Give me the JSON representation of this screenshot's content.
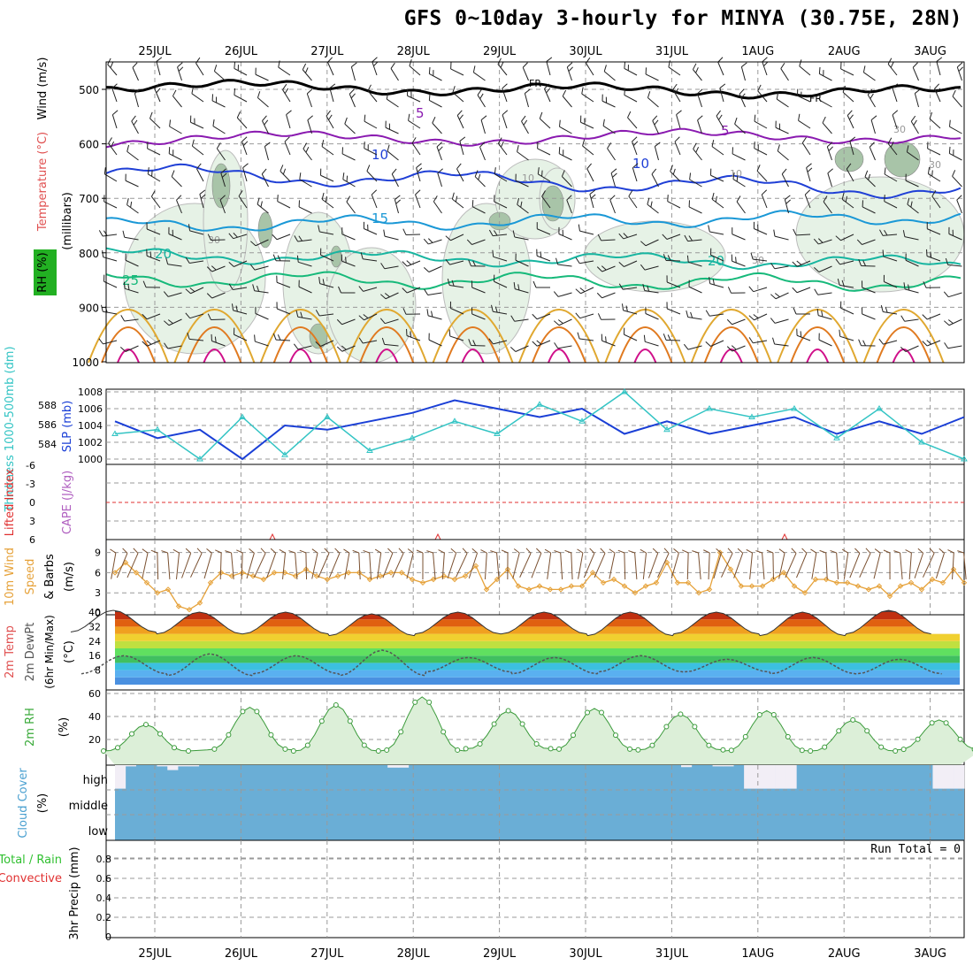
{
  "title": "GFS 0~10day 3-hourly for MINYA (30.75E, 28N)",
  "dates": [
    "25JUL",
    "26JUL",
    "27JUL",
    "28JUL",
    "29JUL",
    "30JUL",
    "31JUL",
    "1AUG",
    "2AUG",
    "3AUG"
  ],
  "colors": {
    "wind_barb": "#000000",
    "freezing": "#000000",
    "rh_fill": "#e6f2e6",
    "temp_5": "#8a1ab0",
    "temp_10": "#1f3fd6",
    "temp_15": "#1a98d6",
    "temp_20": "#17b5a0",
    "temp_25": "#16b97a",
    "temp_warm": "#e0a830",
    "temp_hot": "#e07a20",
    "slp": "#1a3fd6",
    "thickness": "#33c4c4",
    "lifted_zero": "#e03030",
    "wind10": "#e6a23a",
    "temp2m_line": "#333333",
    "rh2m": "#3a9a3a",
    "cloud": "#6aaed6",
    "grid": "#aaaaaa"
  },
  "upper_panel": {
    "axis_label_wind": "Wind (m/s)",
    "axis_label_temp": "Temperature (°C)",
    "axis_label_rh": "RH (%)",
    "axis_label_pressure": "(millibars)",
    "pressure_ticks": [
      "500",
      "600",
      "700",
      "800",
      "900",
      "1000"
    ],
    "fr_label": "FR",
    "contour_labels": [
      "5",
      "5",
      "10",
      "10",
      "15",
      "20",
      "20",
      "25",
      "30",
      "30",
      "30",
      "30",
      "10",
      "10"
    ]
  },
  "chart_data": [
    {
      "type": "line",
      "panel": "SLP and 1000-500mb thickness",
      "x": [
        "24JUL 12",
        "25JUL 00",
        "25JUL 12",
        "26JUL 00",
        "26JUL 12",
        "27JUL 00",
        "27JUL 12",
        "28JUL 00",
        "28JUL 12",
        "29JUL 00",
        "29JUL 12",
        "30JUL 00",
        "30JUL 12",
        "31JUL 00",
        "31JUL 12",
        "1AUG 00",
        "1AUG 12",
        "2AUG 00",
        "2AUG 12",
        "3AUG 00",
        "3AUG 12"
      ],
      "series": [
        {
          "name": "SLP (mb)",
          "values": [
            1004.5,
            1002.5,
            1003.5,
            1000,
            1004,
            1003.5,
            1004.5,
            1005.5,
            1007,
            1006,
            1005,
            1006,
            1003,
            1004.5,
            1003,
            1004,
            1005,
            1003,
            1004.5,
            1003,
            1005
          ]
        },
        {
          "name": "Thickness 1000-500mb (dm)",
          "values": [
            1003,
            1003.5,
            1000,
            1005,
            1000.5,
            1005,
            1001,
            1002.5,
            1004.5,
            1003,
            1006.5,
            1004.5,
            1008,
            1003.5,
            1006,
            1005,
            1006,
            1002.5,
            1006,
            1002,
            1000
          ]
        }
      ],
      "ylabel_left": "Thickness 1000-500mb (dm)",
      "ylabel_right": "SLP (mb)",
      "left_ticks": [
        "588",
        "586",
        "584"
      ],
      "right_ticks": [
        "1008",
        "1006",
        "1004",
        "1002",
        "1000"
      ]
    },
    {
      "type": "line",
      "panel": "Lifted Index and CAPE",
      "ylabel": "Lifted Index",
      "ylabel2": "CAPE (J/kg)",
      "ticks": [
        "-6",
        "-3",
        "0",
        "3",
        "6"
      ],
      "values": [
        0,
        0,
        0,
        0,
        0
      ]
    },
    {
      "type": "line",
      "panel": "10m Wind Speed and Barbs",
      "ylabel": "10m Wind Speed & Barbs",
      "unit": "(m/s)",
      "ticks": [
        "9",
        "6",
        "3",
        "0"
      ],
      "x_hours": [
        0,
        3,
        6,
        9,
        12,
        15,
        18,
        21,
        24,
        27,
        30,
        33,
        36,
        39,
        42,
        45,
        48,
        51,
        54,
        57,
        60,
        63,
        66,
        69,
        72,
        75,
        78,
        81,
        84,
        87,
        90,
        93,
        96,
        99,
        102,
        105,
        108,
        111,
        114,
        117,
        120,
        123,
        126,
        129,
        132,
        135,
        138,
        141,
        144,
        147,
        150,
        153,
        156,
        159,
        162,
        165,
        168,
        171,
        174,
        177,
        180,
        183,
        186,
        189,
        192,
        195,
        198,
        201,
        204,
        207,
        210,
        213,
        216,
        219,
        222,
        225,
        228,
        231,
        234,
        237,
        240
      ],
      "values": [
        6,
        7.5,
        6,
        4.5,
        3,
        3.5,
        1,
        0.5,
        1.5,
        4.5,
        6,
        5.5,
        6,
        5.5,
        5,
        6,
        6,
        5.5,
        6.5,
        5.5,
        5,
        5.5,
        6,
        6,
        5,
        5.5,
        6,
        6,
        5,
        4.5,
        5,
        5.5,
        5,
        5.5,
        7,
        3.5,
        5,
        6.5,
        4,
        3.5,
        4,
        3.5,
        3.5,
        4,
        4,
        6,
        4.5,
        5,
        4,
        3,
        4,
        4.5,
        7.5,
        4.5,
        4.5,
        3,
        3.5,
        9,
        6.5,
        4,
        4,
        4,
        5,
        6,
        4,
        3,
        5,
        5,
        4.5,
        4.5,
        4,
        3.5,
        4,
        2.5,
        4,
        4.5,
        3.5,
        5,
        4.5,
        6.5,
        4.5
      ]
    },
    {
      "type": "area",
      "panel": "2m Temp and DewPt",
      "ylabel": "2m Temp 2m DewPt (6hr Min/Max)",
      "unit": "(°C)",
      "ticks": [
        "40",
        "32",
        "24",
        "16",
        "8"
      ],
      "series": [
        {
          "name": "2m Temp",
          "min": [
            29,
            28,
            28,
            27,
            28,
            28,
            27,
            28,
            27,
            28
          ],
          "max": [
            41,
            40,
            40,
            39,
            40,
            40,
            40,
            40,
            40,
            41
          ]
        },
        {
          "name": "2m DewPt",
          "min": [
            6,
            5,
            6,
            5,
            7,
            6,
            7,
            7,
            6,
            6
          ],
          "max": [
            16,
            17,
            16,
            19,
            15,
            15,
            16,
            14,
            15,
            14
          ]
        }
      ]
    },
    {
      "type": "area",
      "panel": "2m RH",
      "ylabel": "2m RH",
      "unit": "(%)",
      "ticks": [
        "60",
        "40",
        "20"
      ],
      "min": [
        10,
        11,
        10,
        10,
        12,
        11,
        11,
        10,
        10,
        11
      ],
      "max": [
        33,
        48,
        50,
        57,
        45,
        47,
        42,
        45,
        37,
        37
      ]
    },
    {
      "type": "bar",
      "panel": "Cloud Cover",
      "ylabel": "Cloud Cover (%)",
      "levels": [
        "high",
        "middle",
        "low"
      ],
      "high_cloud_pct": [
        95,
        5,
        0,
        0,
        5,
        20,
        5,
        5,
        0,
        0,
        0,
        0,
        0,
        0,
        0,
        0,
        0,
        0,
        0,
        0,
        0,
        0,
        0,
        0,
        0,
        0,
        10,
        10,
        0,
        0,
        0,
        0,
        0,
        0,
        0,
        0,
        0,
        0,
        0,
        0,
        0,
        0,
        0,
        0,
        0,
        0,
        0,
        0,
        0,
        0,
        0,
        0,
        0,
        0,
        8,
        0,
        0,
        5,
        5,
        0,
        95,
        95,
        95,
        95,
        95,
        0,
        0,
        0,
        0,
        0,
        0,
        0,
        0,
        0,
        0,
        0,
        0,
        0,
        95,
        95,
        95
      ]
    },
    {
      "type": "line",
      "panel": "3hr Precip",
      "ylabel": "3hr Precip (mm)",
      "series_labels": [
        "Total / Rain",
        "Convective"
      ],
      "ticks": [
        "0.8",
        "0.6",
        "0.4",
        "0.2",
        "0"
      ],
      "run_total_label": "Run Total = 0",
      "values": [
        0,
        0,
        0,
        0,
        0
      ]
    }
  ]
}
